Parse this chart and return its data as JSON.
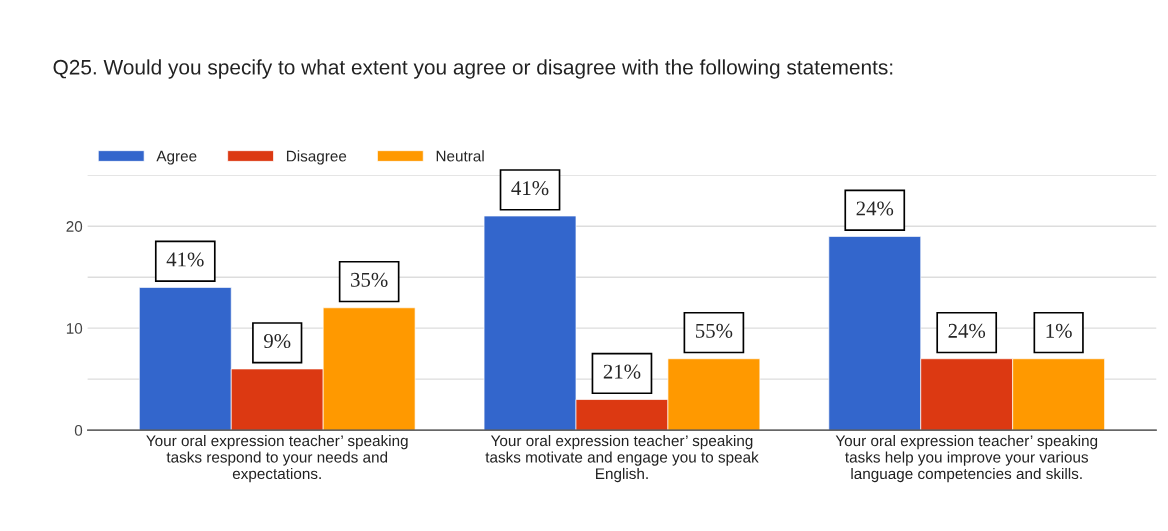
{
  "chart_data": {
    "type": "bar",
    "title": "Q25. Would you specify to what extent you agree or disagree with the following statements:",
    "categories": [
      "Your oral expression teacher’ speaking\ntasks respond to your needs and\nexpectations.",
      "Your oral expression teacher’ speaking\ntasks motivate and engage you to speak\nEnglish.",
      "Your oral expression teacher’ speaking\ntasks help you improve your various\nlanguage competencies and skills."
    ],
    "series": [
      {
        "name": "Agree",
        "color": "#3366cc",
        "values": [
          14,
          21,
          19
        ]
      },
      {
        "name": "Disagree",
        "color": "#dc3912",
        "values": [
          6,
          3,
          7
        ]
      },
      {
        "name": "Neutral",
        "color": "#ff9900",
        "values": [
          12,
          7,
          7
        ]
      }
    ],
    "annotations": [
      "41%",
      "9%",
      "35%",
      "41%",
      "21%",
      "55%",
      "24%",
      "24%",
      "1%"
    ],
    "ylim": [
      0,
      25
    ],
    "yticks": [
      0,
      {
        "value": 5,
        "label": null
      },
      10,
      {
        "value": 15,
        "label": null
      },
      20,
      {
        "value": 25,
        "label": null
      }
    ],
    "grid": "y",
    "legend": "top left"
  }
}
